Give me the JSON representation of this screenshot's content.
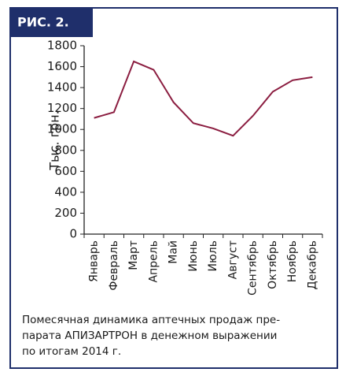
{
  "figure_label": "РИС. 2.",
  "chart_data": {
    "type": "line",
    "y_label": "Тыс. грн.",
    "categories": [
      "Январь",
      "Февраль",
      "Март",
      "Апрель",
      "Май",
      "Июнь",
      "Июль",
      "Август",
      "Сентябрь",
      "Октябрь",
      "Ноябрь",
      "Декабрь"
    ],
    "values": [
      1110,
      1165,
      1650,
      1570,
      1260,
      1060,
      1010,
      940,
      1130,
      1360,
      1470,
      1500
    ],
    "color": "#8b1d40",
    "ylim": [
      0,
      1800
    ],
    "yticks": [
      0,
      200,
      400,
      600,
      800,
      1000,
      1200,
      1400,
      1600,
      1800
    ],
    "caption": [
      "Помесячная динамика аптечных продаж пре-",
      "парата АПИЗАРТРОН в денежном выражении",
      "по итогам 2014 г."
    ]
  }
}
